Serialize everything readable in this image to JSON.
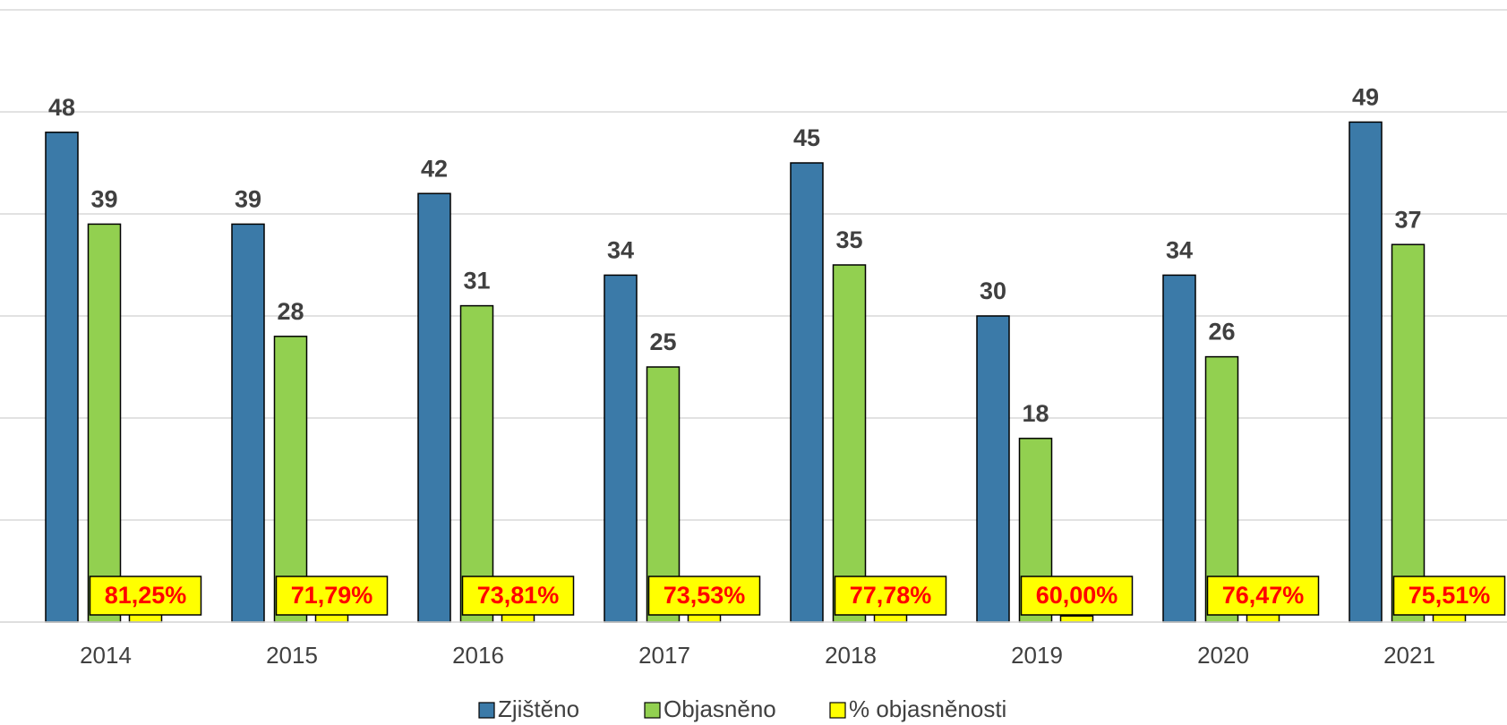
{
  "chart_data": {
    "type": "bar",
    "categories": [
      "2014",
      "2015",
      "2016",
      "2017",
      "2018",
      "2019",
      "2020",
      "2021"
    ],
    "series": [
      {
        "name": "Zjištěno",
        "color": "#3b7aa8",
        "values": [
          48,
          39,
          42,
          34,
          45,
          30,
          34,
          49
        ]
      },
      {
        "name": "Objasněno",
        "color": "#92d050",
        "values": [
          39,
          28,
          31,
          25,
          35,
          18,
          26,
          37
        ]
      },
      {
        "name": "% objasněnosti",
        "color": "#ffff00",
        "values": [
          0.8125,
          0.7179,
          0.7381,
          0.7353,
          0.7778,
          0.6,
          0.7647,
          0.7551
        ],
        "value_labels": [
          "81,25%",
          "71,79%",
          "73,81%",
          "73,53%",
          "77,78%",
          "60,00%",
          "76,47%",
          "75,51%"
        ]
      }
    ],
    "ylim": [
      0,
      50
    ],
    "yticks": [
      0,
      10,
      20,
      30,
      40,
      50
    ],
    "grid": true,
    "legend": "bottom"
  }
}
